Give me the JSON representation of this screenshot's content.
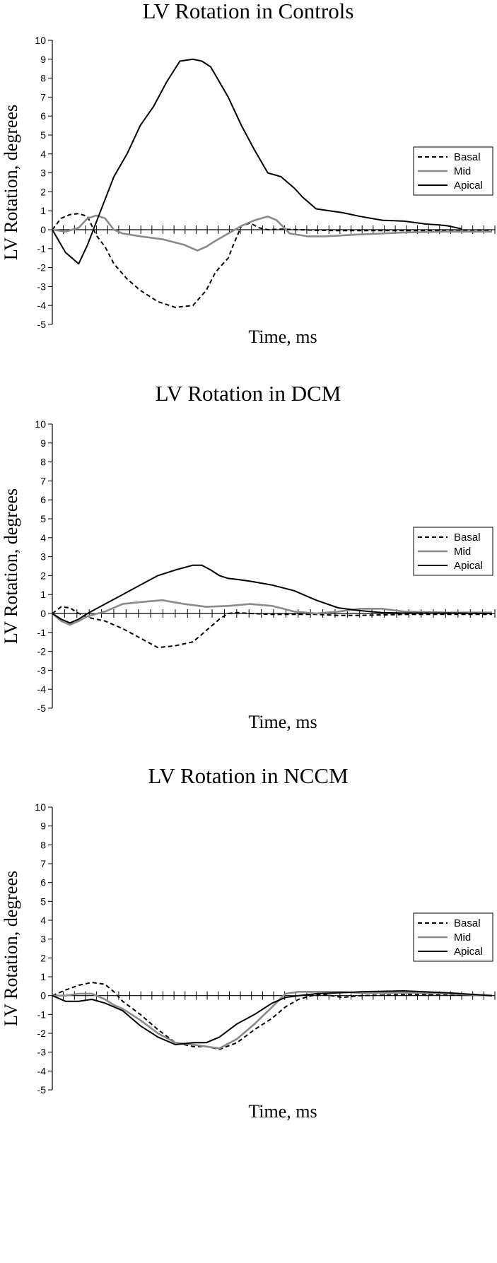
{
  "chart_data": [
    {
      "type": "line",
      "title": "LV Rotation in Controls",
      "xlabel": "Time, ms",
      "ylabel": "LV Rotation, degrees",
      "ylim": [
        -5,
        10
      ],
      "yticks": [
        10,
        9,
        8,
        7,
        6,
        5,
        4,
        3,
        2,
        1,
        0,
        -1,
        -2,
        -3,
        -4,
        -5
      ],
      "x_tick_count": 40,
      "xlim": [
        0,
        100
      ],
      "grid": false,
      "legend_position": "right",
      "series": [
        {
          "name": "Basal",
          "style": "dashed",
          "color": "#000000",
          "x": [
            0,
            2,
            4,
            6,
            8,
            10,
            11,
            12,
            14,
            17,
            20,
            24,
            28,
            32,
            35,
            37,
            38,
            40,
            41,
            43,
            45,
            47,
            49,
            52,
            56,
            60,
            65,
            70,
            80,
            90,
            100
          ],
          "y": [
            0,
            0.6,
            0.8,
            0.85,
            0.7,
            -0.3,
            -0.6,
            -0.9,
            -1.8,
            -2.6,
            -3.2,
            -3.8,
            -4.1,
            -4.0,
            -3.2,
            -2.3,
            -2.0,
            -1.5,
            -0.9,
            0.2,
            0.35,
            0.1,
            0,
            0.03,
            0,
            -0.03,
            -0.05,
            -0.05,
            -0.05,
            -0.05,
            -0.05
          ]
        },
        {
          "name": "Mid",
          "style": "gray",
          "color": "#8a8a8a",
          "x": [
            0,
            3,
            6,
            8,
            10,
            12,
            14,
            16,
            20,
            25,
            30,
            33,
            35,
            37,
            40,
            43,
            46,
            49,
            51,
            54,
            58,
            62,
            70,
            80,
            90,
            100
          ],
          "y": [
            0,
            -0.1,
            0.1,
            0.6,
            0.75,
            0.6,
            0,
            -0.2,
            -0.35,
            -0.5,
            -0.8,
            -1.1,
            -0.9,
            -0.6,
            -0.2,
            0.2,
            0.5,
            0.7,
            0.5,
            -0.2,
            -0.35,
            -0.35,
            -0.25,
            -0.15,
            -0.1,
            -0.1
          ]
        },
        {
          "name": "Apical",
          "style": "solid",
          "color": "#000000",
          "x": [
            0,
            3,
            6,
            8,
            11,
            14,
            17,
            20,
            23,
            26,
            29,
            32,
            34,
            36,
            38,
            40,
            43,
            46,
            49,
            52,
            55,
            57,
            60,
            63,
            66,
            70,
            75,
            80,
            85,
            88,
            90,
            93
          ],
          "y": [
            0,
            -1.2,
            -1.8,
            -0.8,
            1.0,
            2.8,
            4.0,
            5.5,
            6.5,
            7.8,
            8.9,
            9.0,
            8.9,
            8.6,
            7.8,
            7.0,
            5.5,
            4.2,
            3.0,
            2.8,
            2.2,
            1.7,
            1.1,
            1.0,
            0.9,
            0.7,
            0.5,
            0.45,
            0.3,
            0.25,
            0.2,
            0.05
          ]
        }
      ]
    },
    {
      "type": "line",
      "title": "LV Rotation in DCM",
      "xlabel": "Time, ms",
      "ylabel": "LV Rotation, degrees",
      "ylim": [
        -5,
        10
      ],
      "yticks": [
        10,
        9,
        8,
        7,
        6,
        5,
        4,
        3,
        2,
        1,
        0,
        -1,
        -2,
        -3,
        -4,
        -5
      ],
      "x_tick_count": 36,
      "xlim": [
        0,
        100
      ],
      "grid": false,
      "legend_position": "right",
      "series": [
        {
          "name": "Basal",
          "style": "dashed",
          "color": "#000000",
          "x": [
            0,
            2,
            4,
            6,
            8,
            12,
            16,
            20,
            24,
            28,
            32,
            34,
            36,
            38,
            40,
            42,
            45,
            50,
            55,
            60,
            65,
            70,
            80,
            90,
            100
          ],
          "y": [
            0,
            0.35,
            0.3,
            0.0,
            -0.2,
            -0.4,
            -0.8,
            -1.3,
            -1.8,
            -1.7,
            -1.5,
            -1.1,
            -0.7,
            -0.3,
            0,
            0.05,
            0,
            -0.05,
            -0.05,
            -0.05,
            -0.1,
            -0.1,
            -0.05,
            -0.05,
            -0.05
          ]
        },
        {
          "name": "Mid",
          "style": "gray",
          "color": "#8a8a8a",
          "x": [
            0,
            2,
            4,
            6,
            8,
            12,
            16,
            20,
            25,
            30,
            35,
            40,
            45,
            50,
            55,
            60,
            65,
            70,
            75,
            80,
            90,
            100
          ],
          "y": [
            0,
            -0.4,
            -0.6,
            -0.4,
            -0.15,
            0.1,
            0.5,
            0.6,
            0.7,
            0.5,
            0.35,
            0.4,
            0.5,
            0.4,
            0.1,
            0,
            0.1,
            0.25,
            0.25,
            0.1,
            0.05,
            0.05
          ]
        },
        {
          "name": "Apical",
          "style": "solid",
          "color": "#000000",
          "x": [
            0,
            2,
            4,
            6,
            8,
            12,
            16,
            20,
            24,
            28,
            32,
            34,
            36,
            38,
            40,
            42,
            45,
            50,
            55,
            60,
            65,
            70,
            75,
            80,
            90,
            100
          ],
          "y": [
            0,
            -0.3,
            -0.5,
            -0.3,
            0,
            0.5,
            1.0,
            1.5,
            2.0,
            2.3,
            2.55,
            2.55,
            2.3,
            2.0,
            1.85,
            1.8,
            1.7,
            1.5,
            1.2,
            0.7,
            0.3,
            0.15,
            0.05,
            0.02,
            0.02,
            0
          ]
        }
      ]
    },
    {
      "type": "line",
      "title": "LV Rotation in NCCM",
      "xlabel": "Time, ms",
      "ylabel": "LV Rotation, degrees",
      "ylim": [
        -5,
        10
      ],
      "yticks": [
        10,
        9,
        8,
        7,
        6,
        5,
        4,
        3,
        2,
        1,
        0,
        -1,
        -2,
        -3,
        -4,
        -5
      ],
      "x_tick_count": 40,
      "xlim": [
        0,
        100
      ],
      "grid": false,
      "legend_position": "right",
      "series": [
        {
          "name": "Basal",
          "style": "dashed",
          "color": "#000000",
          "x": [
            0,
            3,
            6,
            9,
            12,
            14,
            16,
            20,
            24,
            28,
            32,
            35,
            38,
            42,
            46,
            50,
            53,
            56,
            59,
            62,
            66,
            70,
            80,
            90,
            100
          ],
          "y": [
            0,
            0.3,
            0.55,
            0.7,
            0.6,
            0.2,
            -0.3,
            -1.0,
            -1.8,
            -2.5,
            -2.7,
            -2.7,
            -2.85,
            -2.5,
            -1.8,
            -1.2,
            -0.6,
            -0.2,
            0,
            0.05,
            -0.1,
            0,
            0.05,
            0.05,
            0
          ]
        },
        {
          "name": "Mid",
          "style": "gray",
          "color": "#8a8a8a",
          "x": [
            0,
            3,
            6,
            9,
            12,
            14,
            16,
            20,
            24,
            28,
            32,
            35,
            38,
            42,
            46,
            50,
            53,
            56,
            60,
            65,
            70,
            80,
            90,
            100
          ],
          "y": [
            0,
            0.0,
            0.1,
            0.1,
            -0.2,
            -0.5,
            -0.7,
            -1.3,
            -2.0,
            -2.5,
            -2.6,
            -2.7,
            -2.8,
            -2.3,
            -1.5,
            -0.6,
            0.1,
            0.2,
            0.2,
            0.2,
            0.15,
            0.15,
            0.1,
            0
          ]
        },
        {
          "name": "Apical",
          "style": "solid",
          "color": "#000000",
          "x": [
            0,
            3,
            6,
            9,
            12,
            14,
            16,
            20,
            24,
            28,
            32,
            35,
            38,
            42,
            46,
            50,
            53,
            56,
            60,
            65,
            70,
            80,
            90,
            100
          ],
          "y": [
            0,
            -0.3,
            -0.3,
            -0.2,
            -0.4,
            -0.6,
            -0.8,
            -1.6,
            -2.2,
            -2.6,
            -2.5,
            -2.5,
            -2.2,
            -1.5,
            -1.0,
            -0.4,
            -0.1,
            0,
            0.1,
            0.15,
            0.2,
            0.25,
            0.15,
            0
          ]
        }
      ]
    }
  ]
}
